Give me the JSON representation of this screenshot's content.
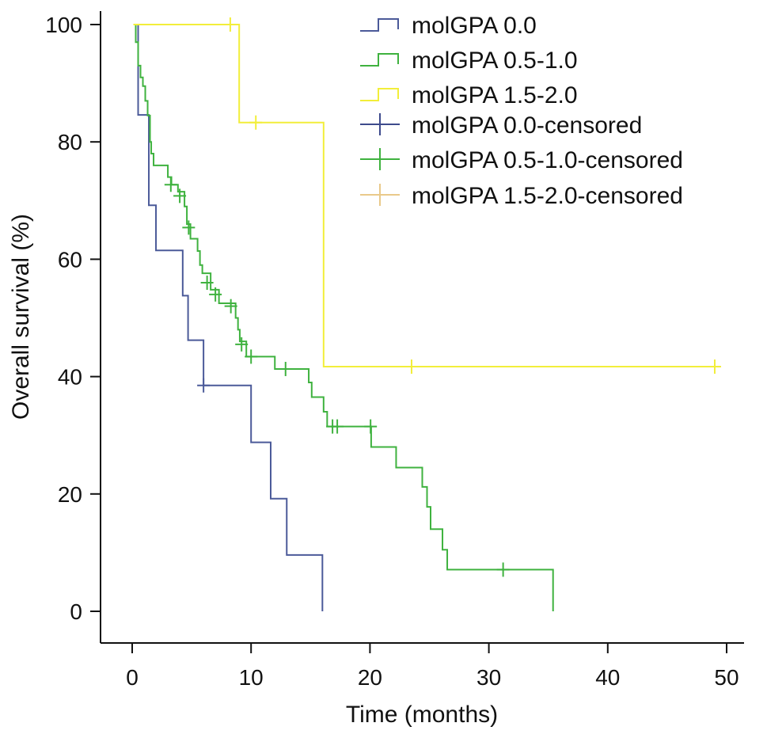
{
  "chart_data": {
    "type": "line",
    "subtype": "kaplan-meier step",
    "title": "",
    "xlabel": "Time (months)",
    "ylabel": "Overall survival (%)",
    "xlim": [
      0,
      50
    ],
    "ylim": [
      0,
      100
    ],
    "xticks": [
      0,
      10,
      20,
      30,
      40,
      50
    ],
    "yticks": [
      0,
      20,
      40,
      60,
      80,
      100
    ],
    "grid": false,
    "legend_position": "top-right",
    "legend": [
      {
        "label": "molGPA 0.0",
        "kind": "step",
        "color": "#4b5a99"
      },
      {
        "label": "molGPA 0.5-1.0",
        "kind": "step",
        "color": "#3fb23f"
      },
      {
        "label": "molGPA 1.5-2.0",
        "kind": "step",
        "color": "#f2ee3a"
      },
      {
        "label": "molGPA 0.0-censored",
        "kind": "censor",
        "color": "#3d4a8c"
      },
      {
        "label": "molGPA 0.5-1.0-censored",
        "kind": "censor",
        "color": "#3fb23f"
      },
      {
        "label": "molGPA 1.5-2.0-censored",
        "kind": "censor",
        "color": "#e9c98a"
      }
    ],
    "series": [
      {
        "name": "molGPA 0.0",
        "color": "#4b5a99",
        "start": 0.3,
        "steps": [
          [
            0.5,
            84.6
          ],
          [
            1.4,
            69.2
          ],
          [
            2.0,
            61.5
          ],
          [
            4.25,
            53.8
          ],
          [
            4.7,
            46.2
          ],
          [
            6.0,
            38.5
          ],
          [
            10.0,
            28.8
          ],
          [
            11.65,
            19.2
          ],
          [
            13.0,
            9.6
          ],
          [
            16.0,
            0
          ]
        ],
        "end": 16.0,
        "censored": [
          [
            6.0,
            38.5
          ]
        ]
      },
      {
        "name": "molGPA 0.5-1.0",
        "color": "#3fb23f",
        "start": 0.1,
        "steps": [
          [
            0.3,
            97
          ],
          [
            0.5,
            93
          ],
          [
            0.7,
            91
          ],
          [
            0.9,
            89.5
          ],
          [
            1.1,
            87
          ],
          [
            1.3,
            84.5
          ],
          [
            1.5,
            80
          ],
          [
            1.6,
            78
          ],
          [
            1.8,
            76
          ],
          [
            3.0,
            74
          ],
          [
            3.3,
            72.7
          ],
          [
            3.85,
            71.5
          ],
          [
            4.4,
            69
          ],
          [
            4.6,
            66
          ],
          [
            4.9,
            63.5
          ],
          [
            5.5,
            61.4
          ],
          [
            5.7,
            59
          ],
          [
            5.9,
            57.6
          ],
          [
            6.6,
            54.8
          ],
          [
            7.3,
            52.5
          ],
          [
            8.7,
            50
          ],
          [
            8.9,
            48
          ],
          [
            9.05,
            46
          ],
          [
            9.6,
            43.4
          ],
          [
            12.0,
            41.3
          ],
          [
            14.85,
            39
          ],
          [
            15.1,
            36.5
          ],
          [
            16.1,
            34
          ],
          [
            16.4,
            31.5
          ],
          [
            20.1,
            28.0
          ],
          [
            22.2,
            24.5
          ],
          [
            24.4,
            21.2
          ],
          [
            24.8,
            17.8
          ],
          [
            25.1,
            14.0
          ],
          [
            26.1,
            10.5
          ],
          [
            26.5,
            7.1
          ],
          [
            35.4,
            0
          ]
        ],
        "end": 35.4,
        "censored": [
          [
            3.25,
            72.7
          ],
          [
            4.0,
            70.8
          ],
          [
            4.75,
            65.4
          ],
          [
            6.3,
            56
          ],
          [
            7.0,
            54
          ],
          [
            8.3,
            52
          ],
          [
            9.2,
            45.5
          ],
          [
            10.0,
            43.4
          ],
          [
            12.9,
            41.3
          ],
          [
            16.85,
            31.5
          ],
          [
            17.25,
            31.5
          ],
          [
            20.05,
            31.5
          ],
          [
            31.2,
            7.1
          ]
        ]
      },
      {
        "name": "molGPA 1.5-2.0",
        "color": "#f2ee3a",
        "start": 0.1,
        "steps": [
          [
            9.0,
            83.3
          ],
          [
            16.1,
            41.7
          ]
        ],
        "end": 49.3,
        "censored": [
          [
            8.25,
            100
          ],
          [
            10.4,
            83.3
          ],
          [
            23.5,
            41.7
          ],
          [
            49.0,
            41.7
          ]
        ]
      }
    ]
  }
}
